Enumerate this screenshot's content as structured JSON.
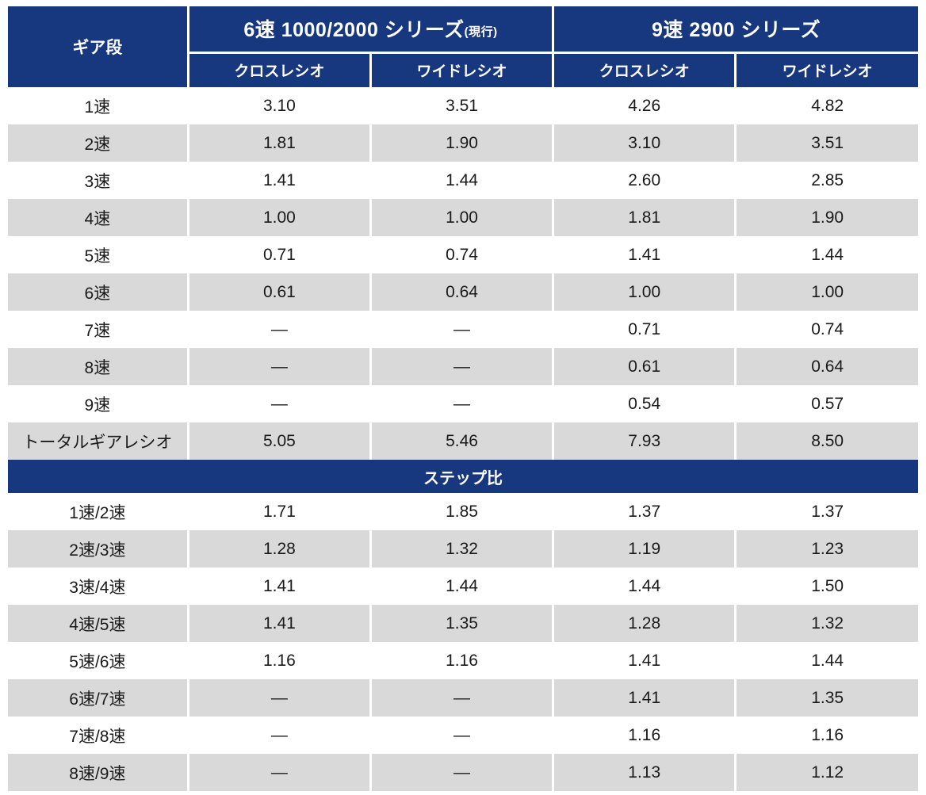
{
  "chart_data": {
    "type": "table",
    "corner_header": "ギア段",
    "column_groups": [
      {
        "label": "6速 1000/2000 シリーズ",
        "suffix": "(現行)",
        "columns": [
          "クロスレシオ",
          "ワイドレシオ"
        ]
      },
      {
        "label": "9速 2900 シリーズ",
        "suffix": "",
        "columns": [
          "クロスレシオ",
          "ワイドレシオ"
        ]
      }
    ],
    "sections": [
      {
        "header": "",
        "rows": [
          {
            "label": "1速",
            "values": [
              "3.10",
              "3.51",
              "4.26",
              "4.82"
            ]
          },
          {
            "label": "2速",
            "values": [
              "1.81",
              "1.90",
              "3.10",
              "3.51"
            ]
          },
          {
            "label": "3速",
            "values": [
              "1.41",
              "1.44",
              "2.60",
              "2.85"
            ]
          },
          {
            "label": "4速",
            "values": [
              "1.00",
              "1.00",
              "1.81",
              "1.90"
            ]
          },
          {
            "label": "5速",
            "values": [
              "0.71",
              "0.74",
              "1.41",
              "1.44"
            ]
          },
          {
            "label": "6速",
            "values": [
              "0.61",
              "0.64",
              "1.00",
              "1.00"
            ]
          },
          {
            "label": "7速",
            "values": [
              "—",
              "—",
              "0.71",
              "0.74"
            ]
          },
          {
            "label": "8速",
            "values": [
              "—",
              "—",
              "0.61",
              "0.64"
            ]
          },
          {
            "label": "9速",
            "values": [
              "—",
              "—",
              "0.54",
              "0.57"
            ]
          },
          {
            "label": "トータルギアレシオ",
            "values": [
              "5.05",
              "5.46",
              "7.93",
              "8.50"
            ]
          }
        ]
      },
      {
        "header": "ステップ比",
        "rows": [
          {
            "label": "1速/2速",
            "values": [
              "1.71",
              "1.85",
              "1.37",
              "1.37"
            ]
          },
          {
            "label": "2速/3速",
            "values": [
              "1.28",
              "1.32",
              "1.19",
              "1.23"
            ]
          },
          {
            "label": "3速/4速",
            "values": [
              "1.41",
              "1.44",
              "1.44",
              "1.50"
            ]
          },
          {
            "label": "4速/5速",
            "values": [
              "1.41",
              "1.35",
              "1.28",
              "1.32"
            ]
          },
          {
            "label": "5速/6速",
            "values": [
              "1.16",
              "1.16",
              "1.41",
              "1.44"
            ]
          },
          {
            "label": "6速/7速",
            "values": [
              "—",
              "—",
              "1.41",
              "1.35"
            ]
          },
          {
            "label": "7速/8速",
            "values": [
              "—",
              "—",
              "1.16",
              "1.16"
            ]
          },
          {
            "label": "8速/9速",
            "values": [
              "—",
              "—",
              "1.13",
              "1.12"
            ]
          }
        ]
      }
    ]
  },
  "colors": {
    "header_bg": "#17377E",
    "stripe_bg": "#D9D9D9",
    "header_text": "#FFFFFF",
    "body_text": "#1A1A1A"
  }
}
